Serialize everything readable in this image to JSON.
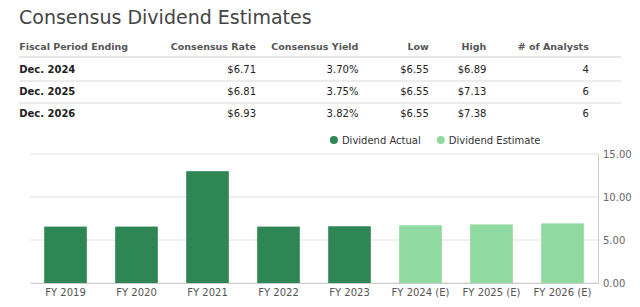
{
  "chart_data": {
    "type": "bar",
    "title": "Consensus Dividend Estimates",
    "table": {
      "columns": [
        "Fiscal Period Ending",
        "Consensus Rate",
        "Consensus Yield",
        "Low",
        "High",
        "# of Analysts"
      ],
      "rows": [
        [
          "Dec. 2024",
          "$6.71",
          "3.70%",
          "$6.55",
          "$6.89",
          "4"
        ],
        [
          "Dec. 2025",
          "$6.81",
          "3.75%",
          "$6.55",
          "$7.13",
          "6"
        ],
        [
          "Dec. 2026",
          "$6.93",
          "3.82%",
          "$6.55",
          "$7.38",
          "6"
        ]
      ]
    },
    "categories": [
      "FY 2019",
      "FY 2020",
      "FY 2021",
      "FY 2022",
      "FY 2023",
      "FY 2024 (E)",
      "FY 2025 (E)",
      "FY 2026 (E)"
    ],
    "series": [
      {
        "name": "Dividend Actual",
        "color": "#2d8653",
        "values": [
          6.56,
          6.56,
          13.0,
          6.56,
          6.6,
          null,
          null,
          null
        ]
      },
      {
        "name": "Dividend Estimate",
        "color": "#90d9a0",
        "values": [
          null,
          null,
          null,
          null,
          null,
          6.71,
          6.81,
          6.93
        ]
      }
    ],
    "stacked": true,
    "ylim": [
      0,
      15.0
    ],
    "yticks": [
      {
        "value": 0.0,
        "label": "0.00"
      },
      {
        "value": 5.0,
        "label": "5.00"
      },
      {
        "value": 10.0,
        "label": "10.00"
      },
      {
        "value": 15.0,
        "label": "15.00"
      }
    ],
    "grid": true,
    "legend": "top"
  }
}
